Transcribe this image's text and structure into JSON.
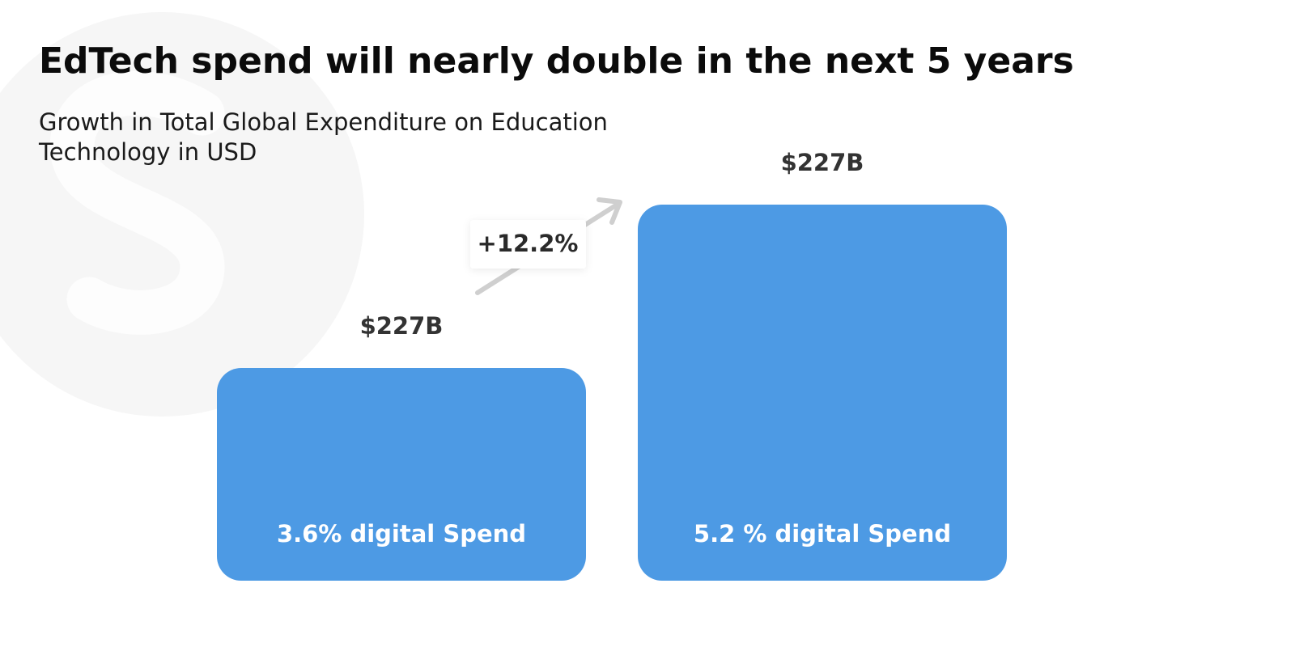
{
  "header": {
    "title": "EdTech spend will nearly double in the next 5 years",
    "subtitle_lines": [
      "Growth in Total Global Expenditure on Education",
      "Technology in USD"
    ]
  },
  "bars": [
    {
      "value_label": "$227B",
      "caption": "3.6% digital Spend"
    },
    {
      "value_label": "$227B",
      "caption": "5.2 % digital Spend"
    }
  ],
  "growth_label": "+12.2%"
}
